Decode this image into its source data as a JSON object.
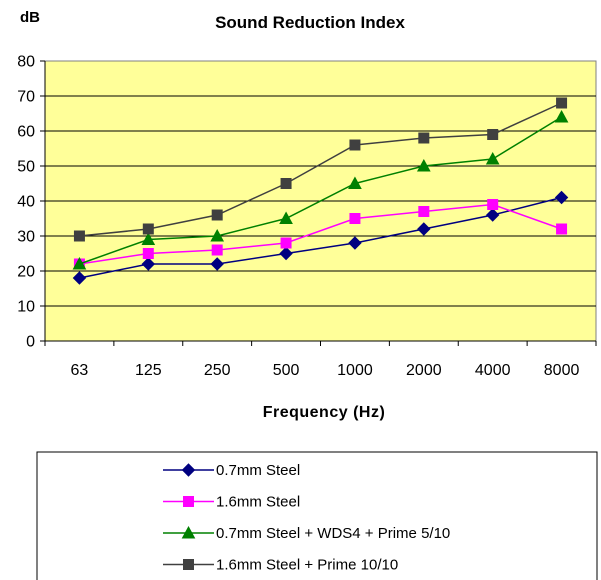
{
  "chart_data": {
    "type": "line",
    "title": "Sound Reduction Index",
    "ylabel": "dB",
    "xlabel": "Frequency (Hz)",
    "categories": [
      "63",
      "125",
      "250",
      "500",
      "1000",
      "2000",
      "4000",
      "8000"
    ],
    "ylim": [
      0,
      80
    ],
    "yticks": [
      "0",
      "10",
      "20",
      "30",
      "40",
      "50",
      "60",
      "70",
      "80"
    ],
    "grid": "horizontal",
    "legend_position": "bottom",
    "series": [
      {
        "name": "0.7mm Steel",
        "color": "#000080",
        "marker": "diamond",
        "values": [
          18,
          22,
          22,
          25,
          28,
          32,
          36,
          41
        ]
      },
      {
        "name": "1.6mm Steel",
        "color": "#ff00ff",
        "marker": "square",
        "values": [
          22,
          25,
          26,
          28,
          35,
          37,
          39,
          32
        ]
      },
      {
        "name": "0.7mm Steel + WDS4 + Prime 5/10",
        "color": "#008000",
        "marker": "triangle",
        "values": [
          22,
          29,
          30,
          35,
          45,
          50,
          52,
          64
        ]
      },
      {
        "name": "1.6mm Steel + Prime 10/10",
        "color": "#404040",
        "marker": "square",
        "values": [
          30,
          32,
          36,
          45,
          56,
          58,
          59,
          68
        ]
      }
    ]
  }
}
